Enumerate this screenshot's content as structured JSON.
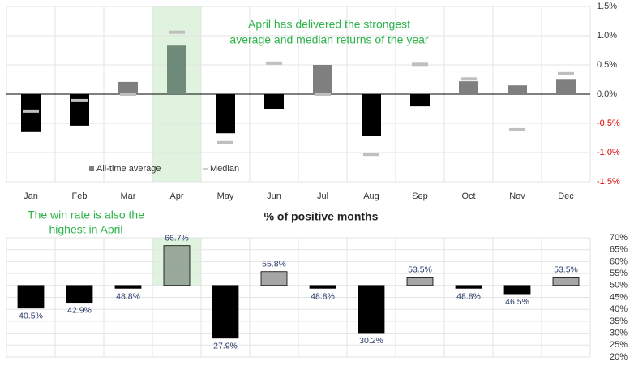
{
  "chart_data": [
    {
      "type": "bar",
      "annotation": [
        "April has delivered the strongest",
        "average and median returns of the year"
      ],
      "categories": [
        "Jan",
        "Feb",
        "Mar",
        "Apr",
        "May",
        "Jun",
        "Jul",
        "Aug",
        "Sep",
        "Oct",
        "Nov",
        "Dec"
      ],
      "series": [
        {
          "name": "All-time average",
          "color": "#7f7f7f",
          "negative_color": "#000000",
          "highlight_color": "#6e8a78",
          "values": [
            -0.65,
            -0.54,
            0.21,
            0.83,
            -0.67,
            -0.25,
            0.5,
            -0.72,
            -0.21,
            0.22,
            0.15,
            0.26
          ]
        },
        {
          "name": "Median",
          "type": "marker",
          "color": "#bfbfbf",
          "values": [
            -0.29,
            -0.11,
            0.0,
            1.06,
            -0.83,
            0.53,
            0.0,
            -1.03,
            0.51,
            0.26,
            -0.61,
            0.35
          ]
        }
      ],
      "highlight_category": "Apr",
      "highlight_color": "#dff3df",
      "ylim": [
        -1.5,
        1.5
      ],
      "yticks": [
        {
          "value": 1.5,
          "label": "1.5%"
        },
        {
          "value": 1.0,
          "label": "1.0%"
        },
        {
          "value": 0.5,
          "label": "0.5%"
        },
        {
          "value": 0,
          "label": "0.0%"
        },
        {
          "value": -0.5,
          "label": "-0.5%"
        },
        {
          "value": -1.0,
          "label": "-1.0%"
        },
        {
          "value": -1.5,
          "label": "-1.5%"
        }
      ],
      "negative_tick_color": "#e00000",
      "grid": true,
      "legend": "lower left"
    },
    {
      "type": "bar",
      "subtitle": "% of positive months",
      "annotation": [
        "The win rate is also the",
        "highest in April"
      ],
      "categories": [
        "Jan",
        "Feb",
        "Mar",
        "Apr",
        "May",
        "Jun",
        "Jul",
        "Aug",
        "Sep",
        "Oct",
        "Nov",
        "Dec"
      ],
      "values": [
        40.5,
        42.9,
        48.8,
        66.7,
        27.9,
        55.8,
        48.8,
        30.2,
        53.5,
        48.8,
        46.5,
        53.5
      ],
      "value_labels": [
        "40.5%",
        "42.9%",
        "48.8%",
        "66.7%",
        "27.9%",
        "55.8%",
        "48.8%",
        "30.2%",
        "53.5%",
        "48.8%",
        "46.5%",
        "53.5%"
      ],
      "bar_base": 50,
      "color": "#a6a6a6",
      "negative_color": "#000000",
      "highlight_color": "#9aaa9a",
      "highlight_category": "Apr",
      "highlight_fill": "#dff3df",
      "ylim": [
        20,
        70
      ],
      "yticks": [
        {
          "value": 70,
          "label": "70%"
        },
        {
          "value": 65,
          "label": "65%"
        },
        {
          "value": 60,
          "label": "60%"
        },
        {
          "value": 55,
          "label": "55%"
        },
        {
          "value": 50,
          "label": "50%"
        },
        {
          "value": 45,
          "label": "45%"
        },
        {
          "value": 40,
          "label": "40%"
        },
        {
          "value": 35,
          "label": "35%"
        },
        {
          "value": 30,
          "label": "30%"
        },
        {
          "value": 25,
          "label": "25%"
        },
        {
          "value": 20,
          "label": "20%"
        }
      ],
      "grid": true
    }
  ]
}
